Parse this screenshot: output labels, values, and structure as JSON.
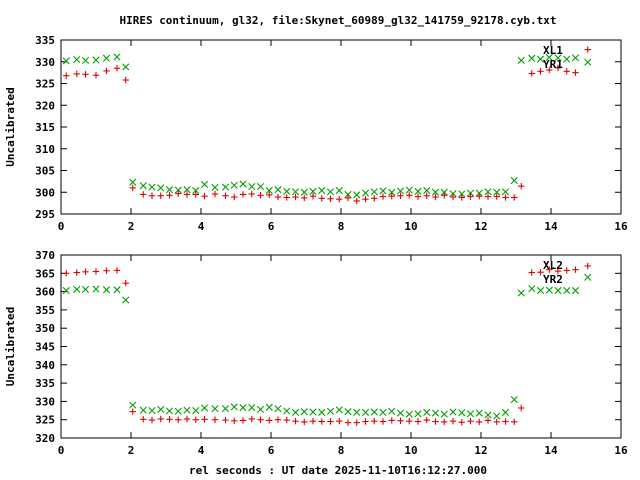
{
  "title": "HIRES continuum, gl32, file:Skynet_60989_gl32_141759_92178.cyb.txt",
  "xlabel": "rel seconds : UT date 2025-11-10T16:12:27.000",
  "colors": {
    "red": "#e00000",
    "green": "#00a000",
    "axis": "#000000"
  },
  "chart_data": [
    {
      "type": "scatter",
      "ylabel": "Uncalibrated",
      "xlim": [
        0,
        16
      ],
      "ylim": [
        295,
        335
      ],
      "xticks": [
        0,
        2,
        4,
        6,
        8,
        10,
        12,
        14,
        16
      ],
      "yticks": [
        295,
        300,
        305,
        310,
        315,
        320,
        325,
        330,
        335
      ],
      "series": [
        {
          "name": "XL1",
          "marker": "x",
          "color": "green",
          "x": [
            0.15,
            0.45,
            0.7,
            1.0,
            1.3,
            1.6,
            1.85,
            2.05,
            2.35,
            2.6,
            2.85,
            3.1,
            3.35,
            3.6,
            3.85,
            4.1,
            4.4,
            4.7,
            4.95,
            5.2,
            5.45,
            5.7,
            5.95,
            6.2,
            6.45,
            6.7,
            6.95,
            7.2,
            7.45,
            7.7,
            7.95,
            8.2,
            8.45,
            8.7,
            8.95,
            9.2,
            9.45,
            9.7,
            9.95,
            10.2,
            10.45,
            10.7,
            10.95,
            11.2,
            11.45,
            11.7,
            11.95,
            12.2,
            12.45,
            12.7,
            12.95,
            13.15,
            13.45,
            13.7,
            13.95,
            14.2,
            14.45,
            14.7,
            15.05
          ],
          "y": [
            330.2,
            330.5,
            330.3,
            330.4,
            330.8,
            331.1,
            328.8,
            302.3,
            301.5,
            301.2,
            301.0,
            300.6,
            300.5,
            300.6,
            300.4,
            301.8,
            301.1,
            301.2,
            301.6,
            301.9,
            301.3,
            301.3,
            300.4,
            300.6,
            300.2,
            300.1,
            300.0,
            300.2,
            300.4,
            300.1,
            300.4,
            299.5,
            299.4,
            299.8,
            300.1,
            300.3,
            300.0,
            300.3,
            300.5,
            300.2,
            300.4,
            300.0,
            300.0,
            299.7,
            299.6,
            299.8,
            299.8,
            300.1,
            300.0,
            300.1,
            302.7,
            330.3,
            330.8,
            330.6,
            331.0,
            330.9,
            330.6,
            330.9,
            329.9
          ]
        },
        {
          "name": "YR1",
          "marker": "+",
          "color": "red",
          "x": [
            0.15,
            0.45,
            0.7,
            1.0,
            1.3,
            1.6,
            1.85,
            2.05,
            2.35,
            2.6,
            2.85,
            3.1,
            3.35,
            3.6,
            3.85,
            4.1,
            4.4,
            4.7,
            4.95,
            5.2,
            5.45,
            5.7,
            5.95,
            6.2,
            6.45,
            6.7,
            6.95,
            7.2,
            7.45,
            7.7,
            7.95,
            8.2,
            8.45,
            8.7,
            8.95,
            9.2,
            9.45,
            9.7,
            9.95,
            10.2,
            10.45,
            10.7,
            10.95,
            11.2,
            11.45,
            11.7,
            11.95,
            12.2,
            12.45,
            12.7,
            12.95,
            13.15,
            13.45,
            13.7,
            13.95,
            14.2,
            14.45,
            14.7,
            15.05
          ],
          "y": [
            326.8,
            327.2,
            327.1,
            326.9,
            327.9,
            328.5,
            325.8,
            301.0,
            299.5,
            299.2,
            299.2,
            299.3,
            299.7,
            299.5,
            299.5,
            299.1,
            299.6,
            299.2,
            298.9,
            299.5,
            299.6,
            299.3,
            299.4,
            298.9,
            298.8,
            298.9,
            298.7,
            299.1,
            298.6,
            298.5,
            298.4,
            298.7,
            298.0,
            298.4,
            298.6,
            299.0,
            299.1,
            299.2,
            299.3,
            299.0,
            299.2,
            298.9,
            299.3,
            298.9,
            298.8,
            299.0,
            299.1,
            299.0,
            299.0,
            298.8,
            298.8,
            301.4,
            327.3,
            327.8,
            328.1,
            328.6,
            327.8,
            327.5,
            332.8
          ]
        }
      ],
      "legend": [
        "XL1",
        "YR1"
      ]
    },
    {
      "type": "scatter",
      "ylabel": "Uncalibrated",
      "xlim": [
        0,
        16
      ],
      "ylim": [
        320,
        370
      ],
      "xticks": [
        0,
        2,
        4,
        6,
        8,
        10,
        12,
        14,
        16
      ],
      "yticks": [
        320,
        325,
        330,
        335,
        340,
        345,
        350,
        355,
        360,
        365,
        370
      ],
      "series": [
        {
          "name": "XL2",
          "marker": "x",
          "color": "green",
          "x": [
            0.15,
            0.45,
            0.7,
            1.0,
            1.3,
            1.6,
            1.85,
            2.05,
            2.35,
            2.6,
            2.85,
            3.1,
            3.35,
            3.6,
            3.85,
            4.1,
            4.4,
            4.7,
            4.95,
            5.2,
            5.45,
            5.7,
            5.95,
            6.2,
            6.45,
            6.7,
            6.95,
            7.2,
            7.45,
            7.7,
            7.95,
            8.2,
            8.45,
            8.7,
            8.95,
            9.2,
            9.45,
            9.7,
            9.95,
            10.2,
            10.45,
            10.7,
            10.95,
            11.2,
            11.45,
            11.7,
            11.95,
            12.2,
            12.45,
            12.7,
            12.95,
            13.15,
            13.45,
            13.7,
            13.95,
            14.2,
            14.45,
            14.7,
            15.05
          ],
          "y": [
            360.3,
            360.6,
            360.6,
            360.7,
            360.5,
            360.5,
            357.7,
            329.0,
            327.6,
            327.5,
            327.8,
            327.4,
            327.3,
            327.6,
            327.5,
            328.2,
            328.0,
            328.0,
            328.5,
            328.3,
            328.3,
            327.8,
            328.4,
            328.0,
            327.4,
            327.0,
            327.2,
            327.1,
            327.0,
            327.3,
            327.7,
            327.2,
            327.0,
            327.0,
            327.1,
            327.0,
            327.3,
            326.8,
            326.5,
            326.6,
            327.0,
            326.8,
            326.5,
            327.1,
            326.9,
            326.6,
            326.8,
            326.3,
            326.0,
            327.0,
            330.5,
            359.6,
            360.8,
            360.3,
            360.4,
            360.3,
            360.3,
            360.3,
            363.9
          ]
        },
        {
          "name": "YR2",
          "marker": "+",
          "color": "red",
          "x": [
            0.15,
            0.45,
            0.7,
            1.0,
            1.3,
            1.6,
            1.85,
            2.05,
            2.35,
            2.6,
            2.85,
            3.1,
            3.35,
            3.6,
            3.85,
            4.1,
            4.4,
            4.7,
            4.95,
            5.2,
            5.45,
            5.7,
            5.95,
            6.2,
            6.45,
            6.7,
            6.95,
            7.2,
            7.45,
            7.7,
            7.95,
            8.2,
            8.45,
            8.7,
            8.95,
            9.2,
            9.45,
            9.7,
            9.95,
            10.2,
            10.45,
            10.7,
            10.95,
            11.2,
            11.45,
            11.7,
            11.95,
            12.2,
            12.45,
            12.7,
            12.95,
            13.15,
            13.45,
            13.7,
            13.95,
            14.2,
            14.45,
            14.7,
            15.05
          ],
          "y": [
            365.0,
            365.2,
            365.4,
            365.5,
            365.7,
            365.8,
            362.3,
            327.2,
            325.1,
            324.9,
            325.2,
            325.1,
            325.0,
            325.2,
            325.0,
            325.1,
            325.0,
            324.9,
            324.7,
            324.8,
            325.2,
            325.0,
            324.8,
            325.0,
            324.9,
            324.6,
            324.4,
            324.6,
            324.5,
            324.5,
            324.6,
            324.2,
            324.2,
            324.5,
            324.6,
            324.5,
            324.8,
            324.7,
            324.6,
            324.5,
            324.9,
            324.5,
            324.4,
            324.6,
            324.3,
            324.6,
            324.4,
            324.8,
            324.4,
            324.5,
            324.4,
            328.2,
            365.2,
            365.3,
            366.0,
            365.6,
            365.8,
            366.0,
            367.0
          ]
        }
      ],
      "legend": [
        "XL2",
        "YR2"
      ]
    }
  ]
}
